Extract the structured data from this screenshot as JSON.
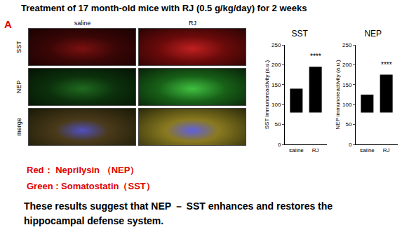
{
  "title": "Treatment of 17 month-old mice with RJ (0.5 g/kg/day) for 2 weeks",
  "panel_label": "A",
  "images": {
    "columns": [
      "saline",
      "RJ"
    ],
    "rows": [
      "SST",
      "NEP",
      "merge"
    ]
  },
  "chart_data": [
    {
      "type": "dot_plot",
      "title": "SST",
      "y_label": "SST immunoreactivity (a.u.)",
      "categories": [
        "saline",
        "RJ"
      ],
      "min": [
        80,
        80
      ],
      "max": [
        140,
        195
      ],
      "color": "#000000",
      "ylim": [
        0,
        250
      ],
      "yticks": [
        0,
        50,
        100,
        150,
        200,
        250
      ],
      "grid": false,
      "annotations": [
        {
          "category": "RJ",
          "y": 207,
          "text": "****"
        }
      ]
    },
    {
      "type": "dot_plot",
      "title": "NEP",
      "y_label": "NEP immunoreactivity (a.u.)",
      "categories": [
        "saline",
        "RJ"
      ],
      "min": [
        80,
        80
      ],
      "max": [
        125,
        175
      ],
      "color": "#000000",
      "ylim": [
        0,
        250
      ],
      "yticks": [
        0,
        50,
        100,
        150,
        200,
        250
      ],
      "grid": false,
      "annotations": [
        {
          "category": "RJ",
          "y": 187,
          "text": "****"
        }
      ]
    }
  ],
  "legend_text": [
    {
      "text": "Red： Neprilysin （NEP）",
      "color": "#e00000"
    },
    {
      "text": "Green : Somatostatin（SST）",
      "color": "#e00000"
    }
  ],
  "conclusion": "These results suggest that NEP － SST enhances and restores the hippocampal defense system."
}
